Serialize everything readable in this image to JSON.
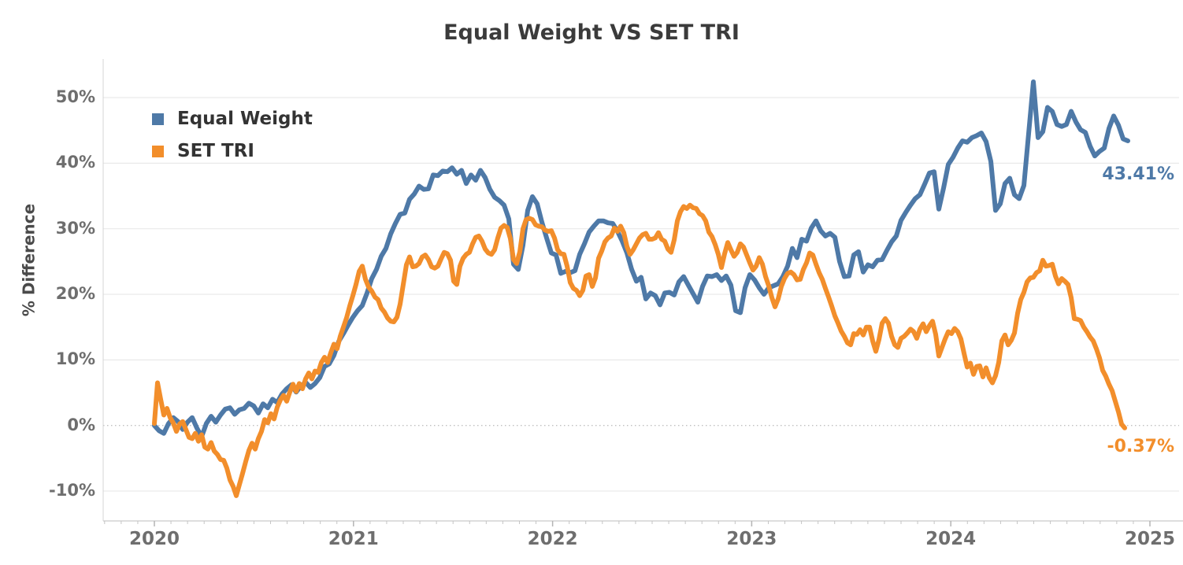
{
  "title": "Equal Weight VS SET TRI",
  "colors": {
    "blue": "#4e79a7",
    "orange": "#f28e2b",
    "grid": "#e9e9e9",
    "zero_line": "#c0c0c0",
    "axis_line": "#d4d4d4",
    "tick": "#c4c4c4",
    "title_text": "#3b3b3b",
    "tick_text": "#6e6e6e"
  },
  "chart_data": {
    "type": "line",
    "title": "Equal Weight VS SET TRI",
    "xlabel": "",
    "ylabel": "% Difference",
    "grid": true,
    "legend_position": "top-left-inside",
    "x_range": [
      2019.74,
      2025.17
    ],
    "y_range": [
      -14.5,
      55.8
    ],
    "x_axis": {
      "ticks": [
        {
          "value": 2020,
          "label": "2020"
        },
        {
          "value": 2021,
          "label": "2021"
        },
        {
          "value": 2022,
          "label": "2022"
        },
        {
          "value": 2023,
          "label": "2023"
        },
        {
          "value": 2024,
          "label": "2024"
        },
        {
          "value": 2025,
          "label": "2025"
        }
      ],
      "minor_ticks_per_year": 12
    },
    "y_axis": {
      "label": "% Difference",
      "ticks": [
        {
          "value": 50,
          "label": "50%"
        },
        {
          "value": 40,
          "label": "40%"
        },
        {
          "value": 30,
          "label": "30%"
        },
        {
          "value": 20,
          "label": "20%"
        },
        {
          "value": 10,
          "label": "10%"
        },
        {
          "value": 0,
          "label": "0%"
        },
        {
          "value": -10,
          "label": "-10%"
        }
      ],
      "zero_line_style": "dotted"
    },
    "series": [
      {
        "name": "Equal Weight",
        "color": "#4e79a7",
        "end_label": "43.41%",
        "end_value": 43.41,
        "x_start": 2020.0,
        "x_step_years": 0.023734,
        "values": [
          0.0,
          -0.8,
          -1.2,
          0.3,
          1.2,
          0.6,
          -0.6,
          0.5,
          1.2,
          -0.4,
          -1.7,
          0.3,
          1.4,
          0.5,
          1.6,
          2.5,
          2.7,
          1.7,
          2.4,
          2.6,
          3.4,
          3.0,
          1.9,
          3.3,
          2.7,
          4.0,
          3.5,
          4.8,
          5.6,
          6.2,
          5.1,
          6.0,
          6.6,
          5.8,
          6.4,
          7.3,
          9.0,
          9.4,
          10.7,
          12.8,
          14.0,
          15.3,
          16.5,
          17.5,
          18.3,
          20.2,
          22.4,
          23.8,
          25.8,
          27.0,
          29.2,
          30.8,
          32.2,
          32.4,
          34.5,
          35.3,
          36.5,
          36.0,
          36.1,
          38.2,
          38.1,
          38.8,
          38.7,
          39.3,
          38.3,
          38.9,
          36.9,
          38.2,
          37.4,
          38.9,
          37.8,
          36.0,
          34.8,
          34.3,
          33.6,
          31.5,
          24.6,
          23.8,
          27.5,
          32.8,
          34.9,
          33.8,
          31.0,
          28.6,
          26.3,
          26.0,
          23.2,
          23.5,
          23.3,
          23.6,
          26.1,
          27.7,
          29.5,
          30.4,
          31.2,
          31.2,
          30.9,
          30.8,
          29.6,
          28.1,
          26.3,
          23.8,
          22.0,
          22.6,
          19.3,
          20.2,
          19.8,
          18.4,
          20.2,
          20.3,
          19.9,
          21.9,
          22.7,
          21.4,
          20.1,
          18.8,
          21.2,
          22.8,
          22.7,
          23.0,
          22.1,
          22.8,
          21.4,
          17.5,
          17.2,
          21.0,
          23.0,
          22.2,
          21.0,
          20.0,
          21.0,
          21.3,
          21.6,
          22.7,
          24.3,
          27.0,
          25.6,
          28.4,
          28.1,
          30.1,
          31.2,
          29.7,
          28.9,
          29.3,
          28.7,
          25.0,
          22.7,
          22.8,
          26.0,
          26.5,
          23.4,
          24.5,
          24.2,
          25.2,
          25.3,
          26.7,
          28.0,
          28.9,
          31.3,
          32.5,
          33.6,
          34.6,
          35.2,
          36.8,
          38.5,
          38.7,
          33.0,
          36.2,
          39.8,
          40.9,
          42.3,
          43.4,
          43.2,
          43.9,
          44.2,
          44.6,
          43.3,
          40.3,
          32.8,
          33.8,
          36.9,
          37.7,
          35.2,
          34.6,
          36.6,
          44.5,
          52.4,
          43.9,
          44.8,
          48.5,
          47.9,
          45.9,
          45.6,
          45.9,
          47.9,
          46.3,
          45.1,
          44.7,
          42.6,
          41.1,
          41.8,
          42.3,
          45.3,
          47.2,
          45.8,
          43.7,
          43.41
        ]
      },
      {
        "name": "SET TRI",
        "color": "#f28e2b",
        "end_label": "-0.37%",
        "end_value": -0.37,
        "x_start": 2020.0,
        "x_step_years": 0.015823,
        "values": [
          0.3,
          6.5,
          4.0,
          1.6,
          2.6,
          1.2,
          0.4,
          -0.9,
          0.2,
          0.6,
          -0.6,
          -1.8,
          -2.0,
          -1.2,
          -2.4,
          -1.4,
          -3.3,
          -3.6,
          -2.6,
          -3.9,
          -4.4,
          -5.2,
          -5.3,
          -6.5,
          -8.3,
          -9.3,
          -10.7,
          -9.0,
          -7.3,
          -5.5,
          -3.8,
          -2.7,
          -3.6,
          -2.0,
          -0.9,
          0.9,
          0.4,
          1.8,
          1.0,
          2.8,
          3.9,
          4.6,
          3.7,
          5.1,
          6.3,
          5.2,
          6.4,
          5.6,
          7.1,
          8.0,
          7.1,
          8.3,
          8.1,
          9.6,
          10.4,
          9.6,
          11.1,
          12.4,
          11.7,
          13.6,
          15.0,
          16.4,
          18.2,
          19.8,
          21.5,
          23.5,
          24.3,
          22.3,
          21.1,
          20.5,
          19.6,
          19.2,
          17.9,
          17.3,
          16.4,
          15.9,
          15.8,
          16.5,
          18.5,
          21.5,
          24.5,
          25.7,
          24.2,
          24.3,
          24.7,
          25.7,
          26.0,
          25.3,
          24.2,
          24.0,
          24.3,
          25.4,
          26.4,
          26.2,
          25.2,
          22.0,
          21.5,
          24.3,
          25.5,
          26.1,
          26.4,
          27.7,
          28.7,
          28.9,
          28.1,
          26.9,
          26.3,
          26.1,
          26.8,
          28.6,
          30.1,
          30.5,
          30.2,
          28.5,
          25.3,
          24.7,
          26.5,
          30.0,
          31.4,
          31.6,
          31.4,
          30.6,
          30.4,
          30.3,
          29.8,
          29.6,
          29.7,
          28.6,
          26.8,
          26.2,
          26.1,
          24.3,
          21.8,
          20.9,
          20.6,
          19.8,
          20.6,
          22.8,
          23.0,
          21.2,
          22.5,
          25.5,
          26.6,
          28.0,
          28.6,
          28.9,
          30.1,
          29.6,
          30.4,
          29.4,
          27.3,
          26.1,
          26.8,
          27.7,
          28.6,
          29.1,
          29.3,
          28.4,
          28.4,
          28.6,
          29.4,
          28.4,
          28.1,
          26.9,
          26.4,
          28.3,
          31.2,
          32.6,
          33.4,
          33.1,
          33.6,
          33.2,
          33.1,
          32.3,
          32.0,
          31.2,
          29.5,
          28.8,
          27.6,
          26.1,
          24.1,
          26.2,
          27.9,
          26.8,
          25.8,
          26.4,
          27.7,
          27.2,
          26.0,
          24.8,
          23.7,
          24.3,
          25.6,
          24.6,
          22.7,
          21.3,
          19.5,
          18.1,
          19.3,
          21.2,
          22.4,
          23.2,
          23.4,
          23.0,
          22.2,
          22.3,
          23.8,
          24.8,
          26.3,
          26.0,
          24.6,
          23.3,
          22.3,
          20.9,
          19.6,
          18.2,
          16.7,
          15.6,
          14.4,
          13.6,
          12.6,
          12.3,
          14.0,
          13.9,
          14.6,
          13.8,
          15.0,
          15.0,
          12.9,
          11.3,
          13.1,
          15.6,
          16.3,
          15.6,
          13.6,
          12.3,
          11.9,
          13.3,
          13.6,
          14.1,
          14.7,
          14.3,
          13.3,
          14.7,
          15.5,
          14.3,
          15.2,
          15.9,
          13.9,
          10.6,
          11.9,
          13.2,
          14.3,
          14.0,
          14.8,
          14.3,
          13.2,
          11.0,
          8.9,
          9.5,
          7.8,
          9.0,
          9.1,
          7.4,
          8.8,
          7.3,
          6.5,
          7.6,
          9.6,
          12.9,
          13.8,
          12.3,
          13.0,
          14.1,
          17.1,
          19.2,
          20.3,
          21.9,
          22.5,
          22.6,
          23.3,
          23.6,
          25.2,
          24.3,
          24.4,
          24.6,
          22.8,
          21.6,
          22.4,
          22.0,
          21.5,
          19.5,
          16.3,
          16.2,
          16.0,
          15.0,
          14.3,
          13.5,
          12.9,
          11.7,
          10.3,
          8.4,
          7.5,
          6.3,
          5.3,
          3.7,
          2.1,
          0.2,
          -0.37
        ]
      }
    ]
  }
}
